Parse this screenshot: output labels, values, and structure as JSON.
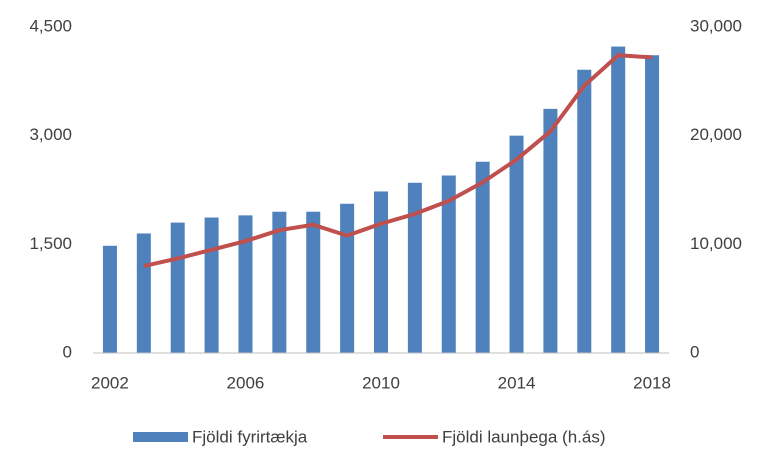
{
  "chart_data": {
    "type": "bar_line",
    "categories": [
      "2002",
      null,
      null,
      null,
      "2006",
      null,
      null,
      null,
      "2010",
      null,
      null,
      null,
      "2014",
      null,
      null,
      null,
      "2018"
    ],
    "series": [
      {
        "name": "Fjöldi fyrirtækja",
        "type": "bar",
        "color": "#4f81bd",
        "values": [
          1480,
          1650,
          1800,
          1870,
          1900,
          1950,
          1950,
          2060,
          2230,
          2350,
          2450,
          2640,
          3000,
          3370,
          3910,
          4230,
          4110
        ]
      },
      {
        "name": "Fjöldi launþega (h.ás)",
        "type": "line",
        "axis": "y2",
        "color": "#c0504d",
        "values": [
          null,
          8000,
          8700,
          9500,
          10300,
          11300,
          11800,
          10800,
          11900,
          12800,
          14000,
          15700,
          17800,
          20400,
          24600,
          27400,
          27200
        ]
      }
    ],
    "ylim": [
      0,
      4500
    ],
    "yticks": [
      0,
      {
        "value": 1500,
        "label": "1,500"
      },
      {
        "value": 3000,
        "label": "3,000"
      },
      {
        "value": 4500,
        "label": "4,500"
      }
    ],
    "y2lim": [
      0,
      30000
    ],
    "y2ticks": [
      0,
      {
        "value": 10000,
        "label": "10,000"
      },
      {
        "value": 20000,
        "label": "20,000"
      },
      {
        "value": 30000,
        "label": "30,000"
      }
    ],
    "grid": false,
    "legend": "bottom"
  }
}
